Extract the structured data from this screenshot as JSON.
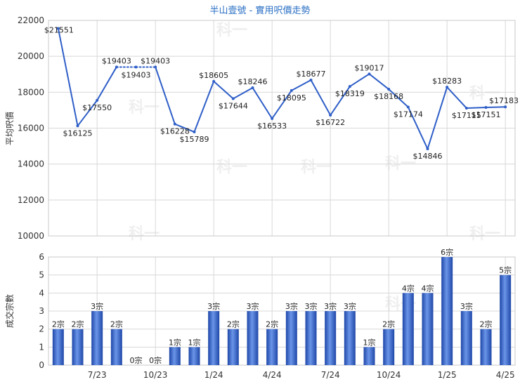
{
  "chart_data": [
    {
      "type": "line",
      "title": "半山壹號 - 實用呎價走勢",
      "ylabel": "平均呎價",
      "ylim": [
        10000,
        22000
      ],
      "yticks": [
        10000,
        12000,
        14000,
        16000,
        18000,
        20000,
        22000
      ],
      "grid": true,
      "color": "#2f5fc8",
      "series": [
        {
          "values": [
            21551,
            16125,
            17550,
            19403,
            19403,
            19403,
            16228,
            15789,
            18605,
            17644,
            18246,
            16533,
            18095,
            18677,
            16722,
            18319,
            19017,
            18168,
            17174,
            14846,
            18283,
            17115,
            17151,
            17183
          ],
          "labels": [
            "$21551",
            "$16125",
            "$17550",
            "$19403",
            "$19403",
            "$19403",
            "$16228",
            "$15789",
            "$18605",
            "$17644",
            "$18246",
            "$16533",
            "$18095",
            "$18677",
            "$16722",
            "$18319",
            "$19017",
            "$18168",
            "$17174",
            "$14846",
            "$18283",
            "$17115",
            "$17151",
            "$17183"
          ],
          "dotted_segments": [
            [
              3,
              5
            ]
          ]
        }
      ]
    },
    {
      "type": "bar",
      "ylabel": "成交宗數",
      "ylim": [
        0,
        6
      ],
      "yticks": [
        0,
        1,
        2,
        3,
        4,
        5,
        6
      ],
      "grid": true,
      "color": "#3f6fd0",
      "values": [
        2,
        2,
        3,
        2,
        0,
        0,
        1,
        1,
        3,
        2,
        3,
        2,
        3,
        3,
        3,
        3,
        1,
        2,
        4,
        4,
        6,
        3,
        2,
        5
      ],
      "labels": [
        "2宗",
        "2宗",
        "3宗",
        "2宗",
        "0宗",
        "0宗",
        "1宗",
        "1宗",
        "3宗",
        "2宗",
        "3宗",
        "2宗",
        "3宗",
        "3宗",
        "3宗",
        "3宗",
        "1宗",
        "2宗",
        "4宗",
        "4宗",
        "6宗",
        "3宗",
        "2宗",
        "5宗"
      ],
      "xticks": [
        {
          "label": "7/23",
          "index": 2
        },
        {
          "label": "10/23",
          "index": 5
        },
        {
          "label": "1/24",
          "index": 8
        },
        {
          "label": "4/24",
          "index": 11
        },
        {
          "label": "7/24",
          "index": 14
        },
        {
          "label": "10/24",
          "index": 17
        },
        {
          "label": "1/25",
          "index": 20
        },
        {
          "label": "4/25",
          "index": 23
        }
      ]
    }
  ],
  "watermark": "科一"
}
